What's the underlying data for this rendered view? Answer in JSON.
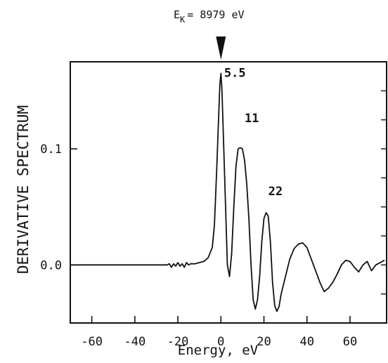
{
  "chart_data": {
    "type": "line",
    "xlabel": "Energy, eV",
    "ylabel": "DERIVATIVE SPECTRUM",
    "xlim": [
      -70,
      77
    ],
    "ylim": [
      -0.05,
      0.175
    ],
    "x_ticks": [
      -60,
      -40,
      -20,
      0,
      20,
      40,
      60
    ],
    "x_tick_labels": [
      "-60",
      "-40",
      "-20",
      "0",
      "20",
      "40",
      "60"
    ],
    "y_ticks": [
      0.0,
      0.1
    ],
    "y_tick_labels": [
      "0.0",
      "0.1"
    ],
    "edge_marker": {
      "x": 0,
      "label_main": "E",
      "label_sub": "K",
      "label_rest": "= 8979 eV"
    },
    "annotations": [
      {
        "text": "5.5",
        "x": 1.5,
        "y": 0.162
      },
      {
        "text": "11",
        "x": 11,
        "y": 0.123
      },
      {
        "text": "22",
        "x": 22,
        "y": 0.06
      }
    ],
    "series": [
      {
        "x": [
          -70,
          -50,
          -30,
          -25,
          -24,
          -23,
          -22,
          -21,
          -20,
          -19,
          -18,
          -17,
          -16,
          -15,
          -14,
          -12,
          -10,
          -8,
          -6,
          -4,
          -3,
          -2,
          -1,
          -0.5,
          0,
          0.5,
          1,
          2,
          3,
          4,
          5,
          6,
          7,
          8,
          9,
          10,
          11,
          12,
          13,
          14,
          15,
          16,
          17,
          18,
          19,
          20,
          21,
          22,
          23,
          24,
          25,
          26,
          27,
          28,
          30,
          32,
          34,
          36,
          38,
          40,
          42,
          44,
          46,
          48,
          50,
          52,
          54,
          56,
          58,
          60,
          62,
          64,
          66,
          68,
          70,
          72,
          74,
          76
        ],
        "y": [
          0.0,
          0.0,
          0.0,
          0.0,
          0.001,
          -0.002,
          0.001,
          -0.001,
          0.002,
          -0.001,
          0.001,
          -0.002,
          0.002,
          0.0,
          0.001,
          0.001,
          0.002,
          0.003,
          0.006,
          0.015,
          0.035,
          0.08,
          0.13,
          0.155,
          0.165,
          0.15,
          0.12,
          0.06,
          0.0,
          -0.01,
          0.01,
          0.05,
          0.085,
          0.1,
          0.101,
          0.1,
          0.09,
          0.07,
          0.04,
          0.0,
          -0.03,
          -0.038,
          -0.03,
          -0.01,
          0.02,
          0.04,
          0.045,
          0.042,
          0.02,
          -0.015,
          -0.035,
          -0.04,
          -0.036,
          -0.025,
          -0.01,
          0.005,
          0.014,
          0.018,
          0.019,
          0.015,
          0.005,
          -0.005,
          -0.015,
          -0.023,
          -0.02,
          -0.015,
          -0.008,
          0.0,
          0.004,
          0.003,
          -0.002,
          -0.006,
          0.0,
          0.003,
          -0.005,
          0.0,
          0.002,
          0.004
        ]
      }
    ]
  }
}
